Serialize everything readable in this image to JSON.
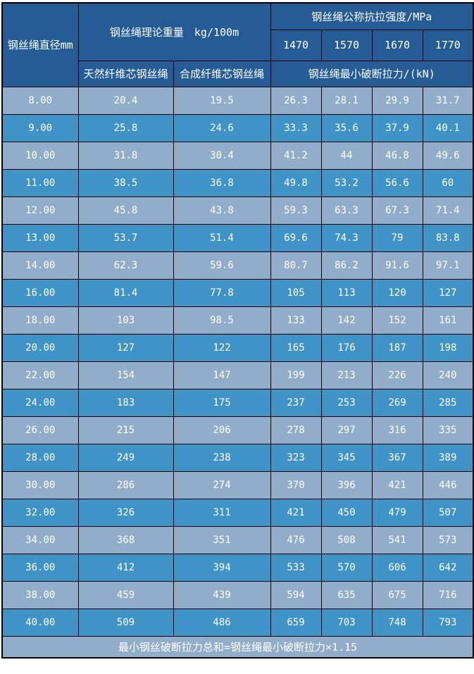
{
  "colors": {
    "header_bg": "#265c96",
    "row_light": "#92adca",
    "row_dark": "#4093c7",
    "border": "#000000",
    "text": "#ffffff",
    "page_bg": "#ffffff"
  },
  "table": {
    "header": {
      "diameter_label": "钢丝绳直径mm",
      "weight_group_label": "钢丝绳理论重量　kg/100m",
      "natural_core_label": "天然纤维芯钢丝绳",
      "synthetic_core_label": "合成纤维芯钢丝绳",
      "strength_group_label": "钢丝绳公称抗拉强度/MPa",
      "strength_grades": [
        "1470",
        "1570",
        "1670",
        "1770"
      ],
      "breaking_force_label": "钢丝绳最小破断拉力/(kN)"
    },
    "rows": [
      [
        "8.00",
        "20.4",
        "19.5",
        "26.3",
        "28.1",
        "29.9",
        "31.7"
      ],
      [
        "9.00",
        "25.8",
        "24.6",
        "33.3",
        "35.6",
        "37.9",
        "40.1"
      ],
      [
        "10.00",
        "31.8",
        "30.4",
        "41.2",
        "44",
        "46.8",
        "49.6"
      ],
      [
        "11.00",
        "38.5",
        "36.8",
        "49.8",
        "53.2",
        "56.6",
        "60"
      ],
      [
        "12.00",
        "45.8",
        "43.8",
        "59.3",
        "63.3",
        "67.3",
        "71.4"
      ],
      [
        "13.00",
        "53.7",
        "51.4",
        "69.6",
        "74.3",
        "79",
        "83.8"
      ],
      [
        "14.00",
        "62.3",
        "59.6",
        "80.7",
        "86.2",
        "91.6",
        "97.1"
      ],
      [
        "16.00",
        "81.4",
        "77.8",
        "105",
        "113",
        "120",
        "127"
      ],
      [
        "18.00",
        "103",
        "98.5",
        "133",
        "142",
        "152",
        "161"
      ],
      [
        "20.00",
        "127",
        "122",
        "165",
        "176",
        "187",
        "198"
      ],
      [
        "22.00",
        "154",
        "147",
        "199",
        "213",
        "226",
        "240"
      ],
      [
        "24.00",
        "183",
        "175",
        "237",
        "253",
        "269",
        "285"
      ],
      [
        "26.00",
        "215",
        "206",
        "278",
        "297",
        "316",
        "335"
      ],
      [
        "28.00",
        "249",
        "238",
        "323",
        "345",
        "367",
        "389"
      ],
      [
        "30.00",
        "286",
        "274",
        "370",
        "396",
        "421",
        "446"
      ],
      [
        "32.00",
        "326",
        "311",
        "421",
        "450",
        "479",
        "507"
      ],
      [
        "34.00",
        "368",
        "351",
        "476",
        "508",
        "541",
        "573"
      ],
      [
        "36.00",
        "412",
        "394",
        "533",
        "570",
        "606",
        "642"
      ],
      [
        "38.00",
        "459",
        "439",
        "594",
        "635",
        "675",
        "716"
      ],
      [
        "40.00",
        "509",
        "486",
        "659",
        "703",
        "748",
        "793"
      ]
    ],
    "footer_note": "最小钢丝破断拉力总和=钢丝绳最小破断拉力×1.15"
  }
}
